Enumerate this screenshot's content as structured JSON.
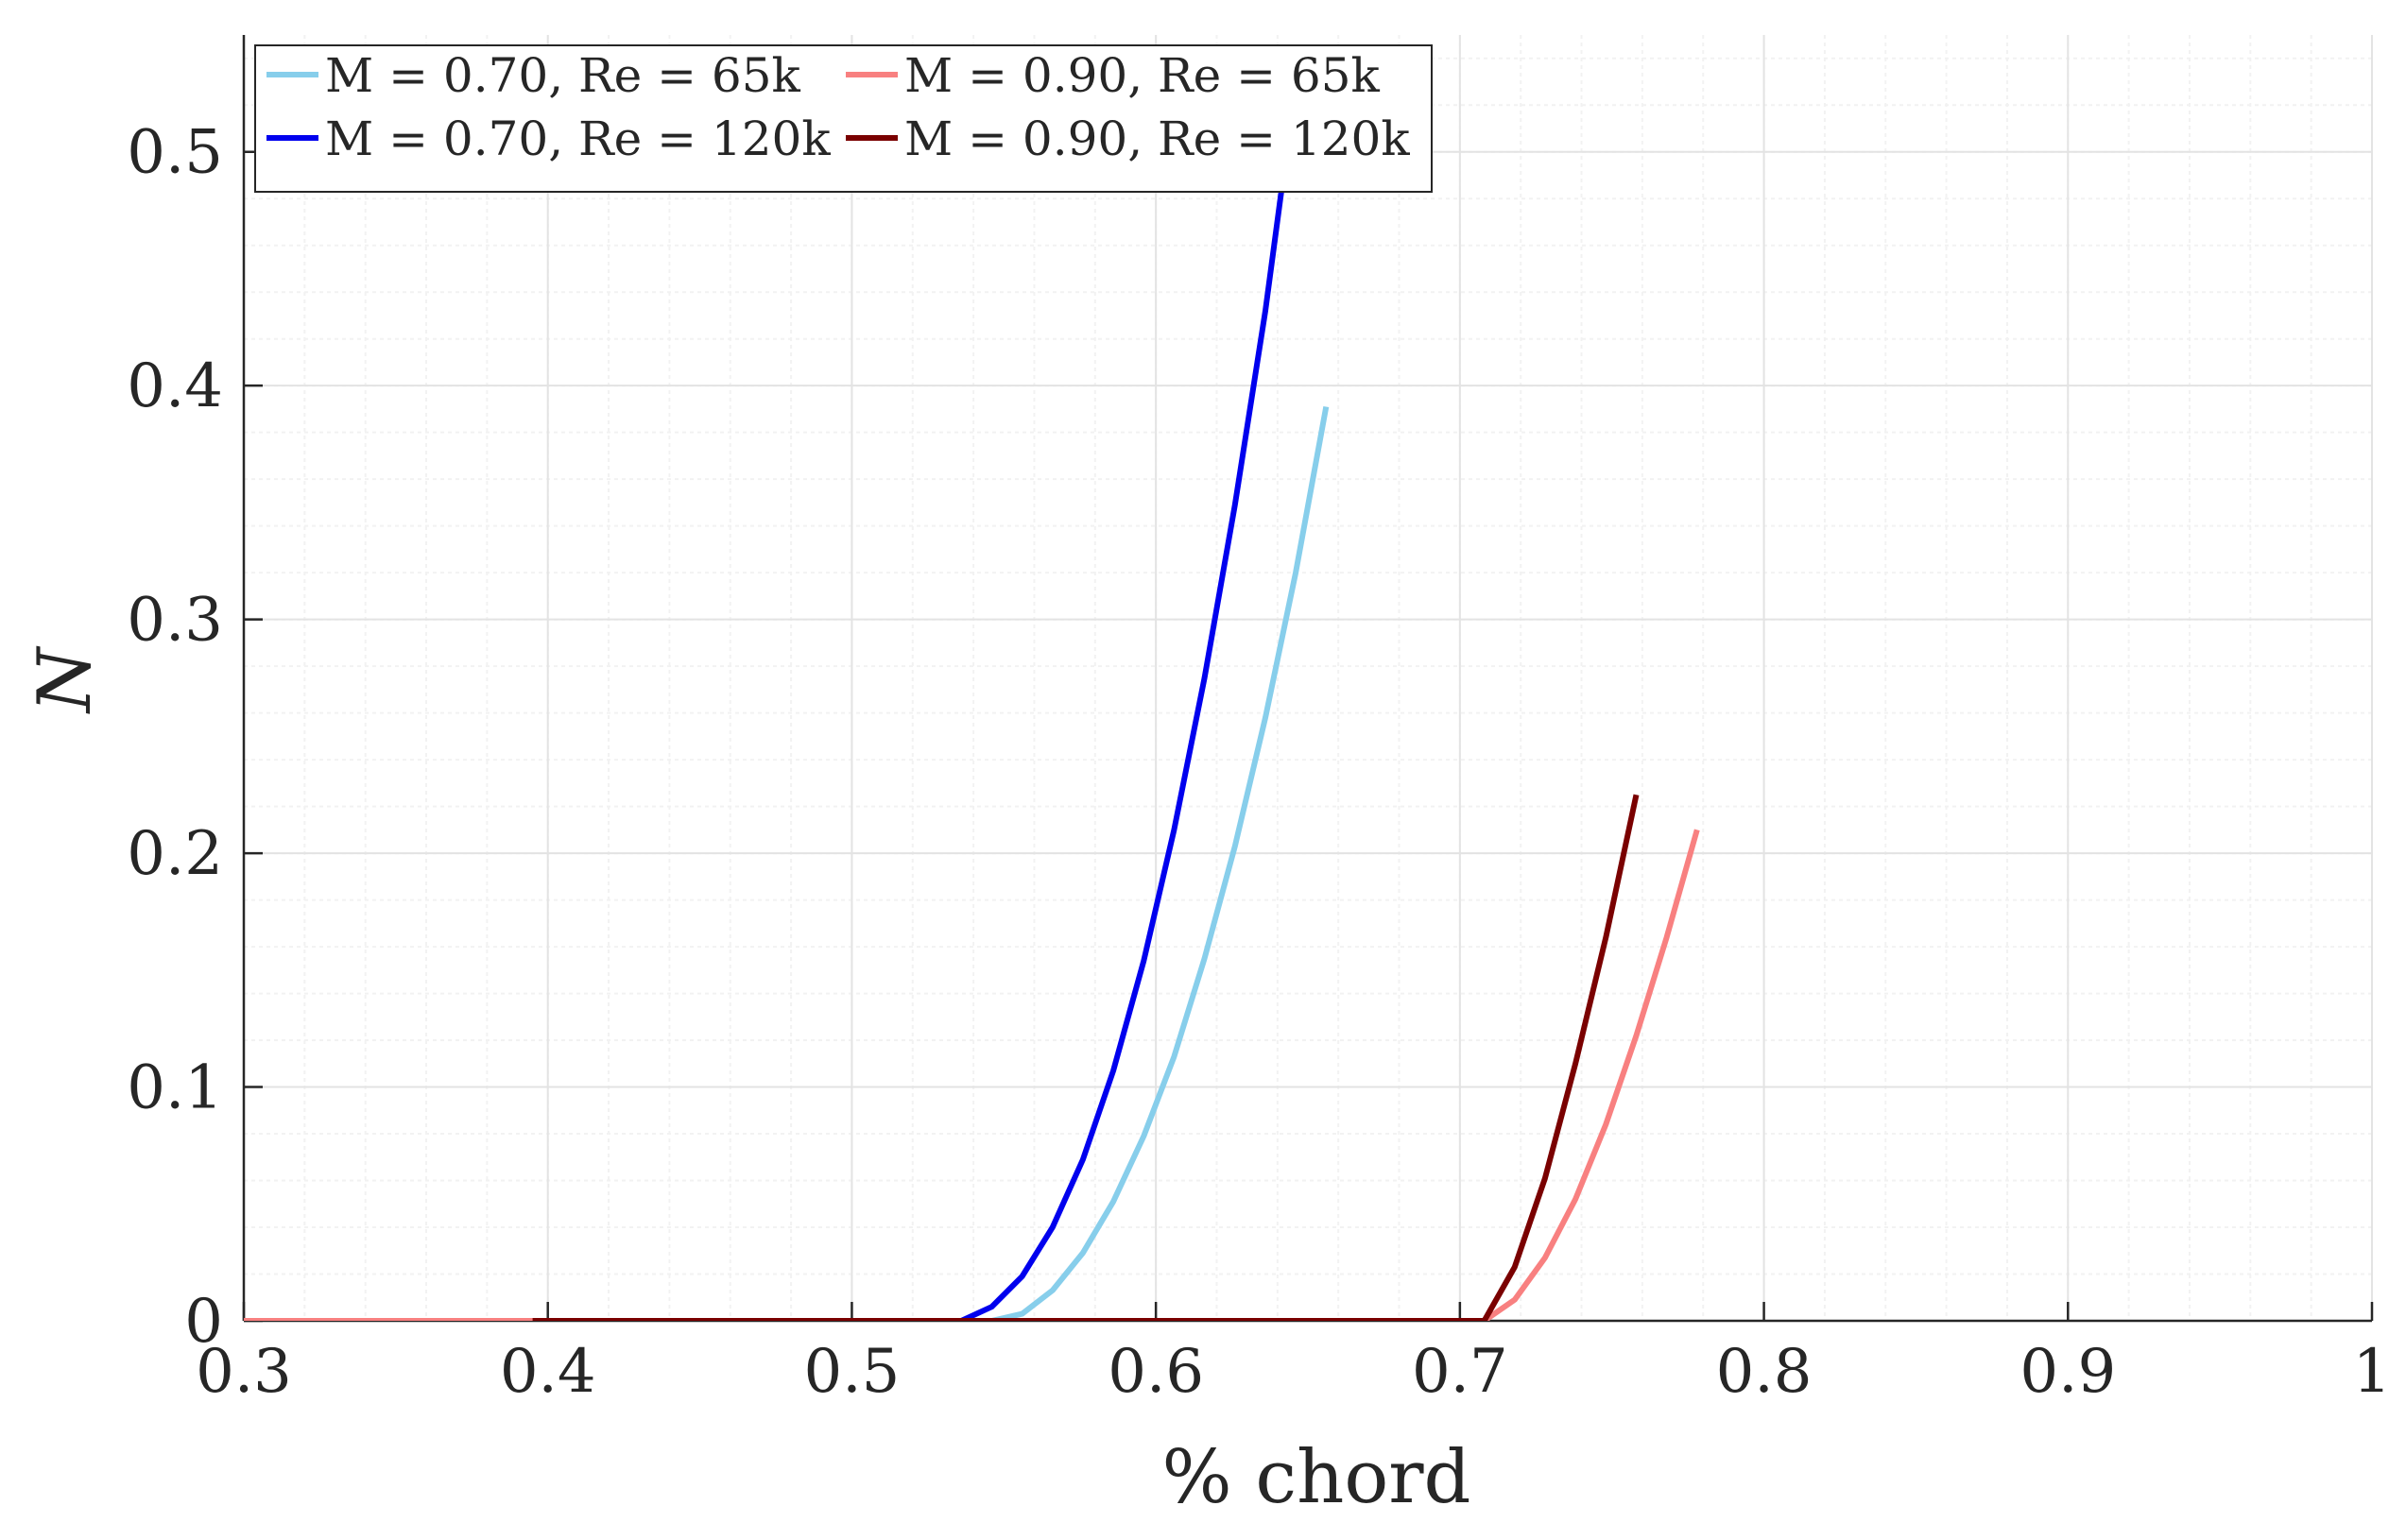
{
  "chart_data": {
    "type": "line",
    "title": "",
    "xlabel": "% chord",
    "ylabel": "N",
    "xlim": [
      0.3,
      1.0
    ],
    "ylim": [
      0,
      0.55
    ],
    "xticks": [
      0.3,
      0.4,
      0.5,
      0.6,
      0.7,
      0.8,
      0.9,
      1.0
    ],
    "xtick_labels": [
      "0.3",
      "0.4",
      "0.5",
      "0.6",
      "0.7",
      "0.8",
      "0.9",
      "1"
    ],
    "yticks": [
      0,
      0.1,
      0.2,
      0.3,
      0.4,
      0.5
    ],
    "ytick_labels": [
      "0",
      "0.1",
      "0.2",
      "0.3",
      "0.4",
      "0.5"
    ],
    "grid": true,
    "minor_grid": true,
    "legend_position": "top-left",
    "series": [
      {
        "name": "M = 0.70, Re = 65k",
        "color": "#87CEEB",
        "x": [
          0.3,
          0.4,
          0.5,
          0.546,
          0.556,
          0.566,
          0.576,
          0.586,
          0.596,
          0.606,
          0.616,
          0.626,
          0.636,
          0.646,
          0.656
        ],
        "y": [
          0,
          0,
          0,
          0,
          0.003,
          0.013,
          0.029,
          0.051,
          0.079,
          0.113,
          0.155,
          0.203,
          0.258,
          0.32,
          0.391
        ]
      },
      {
        "name": "M = 0.70, Re = 120k",
        "color": "#0000EE",
        "x": [
          0.3,
          0.4,
          0.5,
          0.536,
          0.546,
          0.556,
          0.566,
          0.576,
          0.586,
          0.596,
          0.606,
          0.616,
          0.626,
          0.636,
          0.643
        ],
        "y": [
          0,
          0,
          0,
          0,
          0.006,
          0.019,
          0.04,
          0.069,
          0.107,
          0.154,
          0.21,
          0.275,
          0.349,
          0.432,
          0.5
        ]
      },
      {
        "name": "M = 0.90, Re = 65k",
        "color": "#F88080",
        "x": [
          0.3,
          0.4,
          0.5,
          0.6,
          0.708,
          0.718,
          0.728,
          0.738,
          0.748,
          0.758,
          0.768,
          0.778
        ],
        "y": [
          0,
          0,
          0,
          0,
          0,
          0.009,
          0.027,
          0.052,
          0.084,
          0.122,
          0.164,
          0.21
        ]
      },
      {
        "name": "M = 0.90, Re = 120k",
        "color": "#7A0000",
        "x": [
          0.395,
          0.5,
          0.6,
          0.708,
          0.718,
          0.728,
          0.738,
          0.748,
          0.758
        ],
        "y": [
          0,
          0,
          0,
          0,
          0.023,
          0.061,
          0.11,
          0.164,
          0.225
        ]
      }
    ]
  }
}
